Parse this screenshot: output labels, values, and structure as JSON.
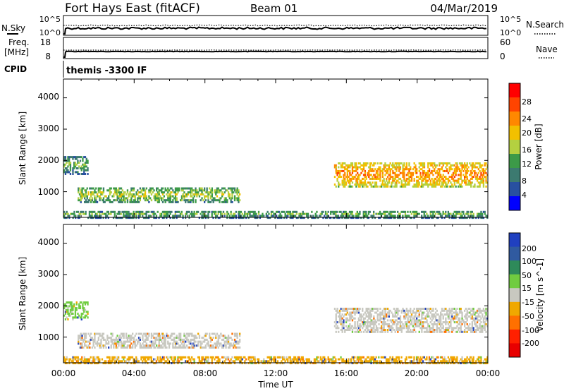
{
  "header": {
    "station": "Fort Hays East (fitACF)",
    "beam": "Beam 01",
    "date": "04/Mar/2019"
  },
  "noise_panel": {
    "left_label": "N.Sky",
    "left_ticks": [
      "10^5",
      "10^0"
    ],
    "right_label": "N.Search",
    "right_ticks": [
      "10^5",
      "10^0"
    ]
  },
  "freq_panel": {
    "left_label_line1": "Freq.",
    "left_label_line2": "[MHz]",
    "left_ticks": [
      "18",
      "8"
    ],
    "right_label": "Nave",
    "right_ticks": [
      "60",
      "0"
    ]
  },
  "cpid": {
    "label": "CPID",
    "value": "themis -3300 IF"
  },
  "power_colorbar": {
    "label": "Power [dB]",
    "ticks": [
      "28",
      "24",
      "20",
      "16",
      "12",
      "8",
      "4"
    ],
    "colors": [
      "#ff0000",
      "#ff4400",
      "#ff8800",
      "#f2c000",
      "#b4d040",
      "#3c9a48",
      "#3c7a70",
      "#2850a0",
      "#0000ff"
    ]
  },
  "velocity_colorbar": {
    "label": "Velocity [m s^-1]",
    "ticks": [
      "200",
      "100",
      "50",
      "15",
      "-15",
      "-50",
      "-100",
      "-200"
    ],
    "colors": [
      "#2040c0",
      "#305aa0",
      "#2e8a5a",
      "#70cc40",
      "#c8c8c0",
      "#f0a800",
      "#ff7000",
      "#ff2000",
      "#e80000"
    ]
  },
  "axes": {
    "ylabel": "Slant Range [km]",
    "yticks": [
      "4000",
      "3000",
      "2000",
      "1000"
    ],
    "xlabel": "Time UT",
    "xticks": [
      "00:00",
      "04:00",
      "08:00",
      "12:00",
      "16:00",
      "20:00",
      "00:00"
    ]
  },
  "chart_data": [
    {
      "type": "heatmap",
      "title": "Power",
      "xlabel": "Time UT",
      "ylabel": "Slant Range [km]",
      "xlim_hours": [
        0,
        24
      ],
      "ylim_km": [
        180,
        4600
      ],
      "colorbar_label": "Power [dB]",
      "colorbar_range": [
        0,
        30
      ],
      "echo_regions": [
        {
          "t_start": 0.0,
          "t_end": 1.4,
          "r_min": 1600,
          "r_max": 2200,
          "level_db": 8
        },
        {
          "t_start": 0.8,
          "t_end": 10.0,
          "r_min": 700,
          "r_max": 1200,
          "level_db": 12
        },
        {
          "t_start": 15.3,
          "t_end": 24.0,
          "r_min": 1200,
          "r_max": 2000,
          "level_db": 20
        },
        {
          "t_start": 0.0,
          "t_end": 24.0,
          "r_min": 200,
          "r_max": 450,
          "level_db": 8
        }
      ]
    },
    {
      "type": "heatmap",
      "title": "Velocity",
      "xlabel": "Time UT",
      "ylabel": "Slant Range [km]",
      "xlim_hours": [
        0,
        24
      ],
      "ylim_km": [
        180,
        4600
      ],
      "colorbar_label": "Velocity [m s^-1]",
      "colorbar_range": [
        -200,
        200
      ],
      "echo_regions": [
        {
          "t_start": 0.0,
          "t_end": 1.4,
          "r_min": 1600,
          "r_max": 2200,
          "level_ms": 40
        },
        {
          "t_start": 0.8,
          "t_end": 10.0,
          "r_min": 700,
          "r_max": 1200,
          "level_ms": 0
        },
        {
          "t_start": 15.3,
          "t_end": 24.0,
          "r_min": 1200,
          "r_max": 2000,
          "level_ms": 0
        },
        {
          "t_start": 0.0,
          "t_end": 24.0,
          "r_min": 200,
          "r_max": 450,
          "level_ms": -30
        }
      ]
    }
  ]
}
